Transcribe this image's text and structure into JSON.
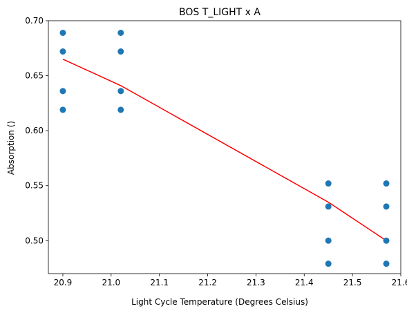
{
  "chart_data": {
    "type": "scatter",
    "title": "BOS T_LIGHT x A",
    "xlabel": "Light Cycle Temperature (Degrees Celsius)",
    "ylabel": "Absorption ()",
    "xlim": [
      20.87,
      21.6
    ],
    "ylim": [
      0.47,
      0.7
    ],
    "xticks": [
      "20.9",
      "21.0",
      "21.1",
      "21.2",
      "21.3",
      "21.4",
      "21.5",
      "21.6"
    ],
    "xtick_values": [
      20.9,
      21.0,
      21.1,
      21.2,
      21.3,
      21.4,
      21.5,
      21.6
    ],
    "yticks": [
      "0.50",
      "0.55",
      "0.60",
      "0.65",
      "0.70"
    ],
    "ytick_values": [
      0.5,
      0.55,
      0.6,
      0.65,
      0.7
    ],
    "grid": false,
    "legend": "none",
    "series": [
      {
        "kind": "scatter",
        "color": "#1f77b4",
        "points": [
          [
            20.9,
            0.689
          ],
          [
            20.9,
            0.672
          ],
          [
            20.9,
            0.636
          ],
          [
            20.9,
            0.619
          ],
          [
            21.02,
            0.689
          ],
          [
            21.02,
            0.672
          ],
          [
            21.02,
            0.636
          ],
          [
            21.02,
            0.619
          ],
          [
            21.45,
            0.552
          ],
          [
            21.45,
            0.531
          ],
          [
            21.45,
            0.5
          ],
          [
            21.45,
            0.479
          ],
          [
            21.57,
            0.552
          ],
          [
            21.57,
            0.531
          ],
          [
            21.57,
            0.5
          ],
          [
            21.57,
            0.479
          ]
        ]
      },
      {
        "kind": "line",
        "color": "#ff0000",
        "points": [
          [
            20.9,
            0.665
          ],
          [
            21.02,
            0.641
          ],
          [
            21.45,
            0.535
          ],
          [
            21.57,
            0.5
          ]
        ]
      }
    ]
  }
}
